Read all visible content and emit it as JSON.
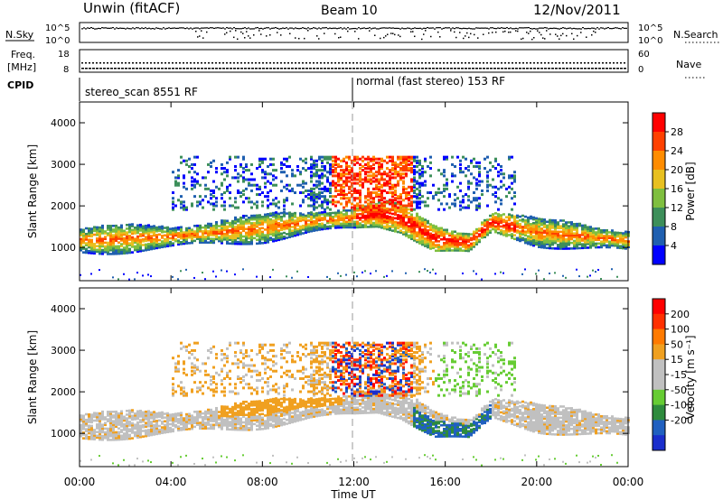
{
  "header": {
    "station": "Unwin (fitACF)",
    "beam": "Beam 10",
    "date": "12/Nov/2011"
  },
  "strip": {
    "nsky_label": "N.Sky",
    "nsky_ticks": [
      "10^5",
      "10^0"
    ],
    "nsearch_label": "N.Search",
    "nsearch_ticks": [
      "10^5",
      "10^0"
    ],
    "freq_label": "Freq.",
    "freq_unit": "[MHz]",
    "freq_ticks": [
      "18",
      "8"
    ],
    "nave_label": "Nave",
    "nave_ticks": [
      "60",
      "0"
    ],
    "cpid_label": "CPID",
    "cpid_left": "stereo_scan 8551 RF",
    "cpid_right": "normal (fast stereo) 153 RF"
  },
  "colors": {
    "power": [
      "#0000ff",
      "#1f5fb0",
      "#3d8f5a",
      "#7fbf3f",
      "#e8c020",
      "#ff8c00",
      "#ff4000",
      "#ff0000"
    ],
    "velocity": [
      "#1a2ecc",
      "#2060c0",
      "#2e8b3d",
      "#66cc33",
      "#c0c0c0",
      "#c0c0c0",
      "#f0a020",
      "#ff7a00",
      "#ff3000",
      "#ff0000"
    ],
    "scatter_gray": "#c0c0c0"
  },
  "chart_data": [
    {
      "type": "heatmap",
      "name": "power",
      "ylabel": "Slant Range [km]",
      "yticks": [
        "1000",
        "2000",
        "3000",
        "4000"
      ],
      "ylim": [
        200,
        4500
      ],
      "colorbar_label": "Power [dB]",
      "colorbar_ticks": [
        "4",
        "8",
        "12",
        "16",
        "20",
        "24",
        "28"
      ],
      "xlim": [
        0,
        24
      ],
      "xlabel": "Time UT",
      "xticks": [
        "00:00",
        "04:00",
        "08:00",
        "12:00",
        "16:00",
        "20:00",
        "00:00"
      ],
      "main_band": [
        {
          "t": 0,
          "r": 1150
        },
        {
          "t": 2,
          "r": 1200
        },
        {
          "t": 4,
          "r": 1250
        },
        {
          "t": 6,
          "r": 1350
        },
        {
          "t": 8,
          "r": 1450
        },
        {
          "t": 10,
          "r": 1600
        },
        {
          "t": 12,
          "r": 1700
        },
        {
          "t": 13,
          "r": 1800
        },
        {
          "t": 14,
          "r": 1700
        },
        {
          "t": 15.5,
          "r": 1200
        },
        {
          "t": 17,
          "r": 1100
        },
        {
          "t": 18,
          "r": 1600
        },
        {
          "t": 20,
          "r": 1350
        },
        {
          "t": 22,
          "r": 1250
        },
        {
          "t": 24,
          "r": 1150
        }
      ],
      "upper_echo": {
        "t_start": 4,
        "t_end": 19,
        "r_low": 1900,
        "r_high": 3200
      }
    },
    {
      "type": "heatmap",
      "name": "velocity",
      "ylabel": "Slant Range [km]",
      "yticks": [
        "1000",
        "2000",
        "3000",
        "4000"
      ],
      "ylim": [
        200,
        4500
      ],
      "colorbar_label": "Velocity [m s⁻¹]",
      "colorbar_ticks": [
        "200",
        "100",
        "50",
        "15",
        "-15",
        "-50",
        "-100",
        "-200"
      ],
      "xlim": [
        0,
        24
      ],
      "xlabel": "Time UT",
      "xticks": [
        "00:00",
        "04:00",
        "08:00",
        "12:00",
        "16:00",
        "20:00",
        "00:00"
      ]
    }
  ]
}
